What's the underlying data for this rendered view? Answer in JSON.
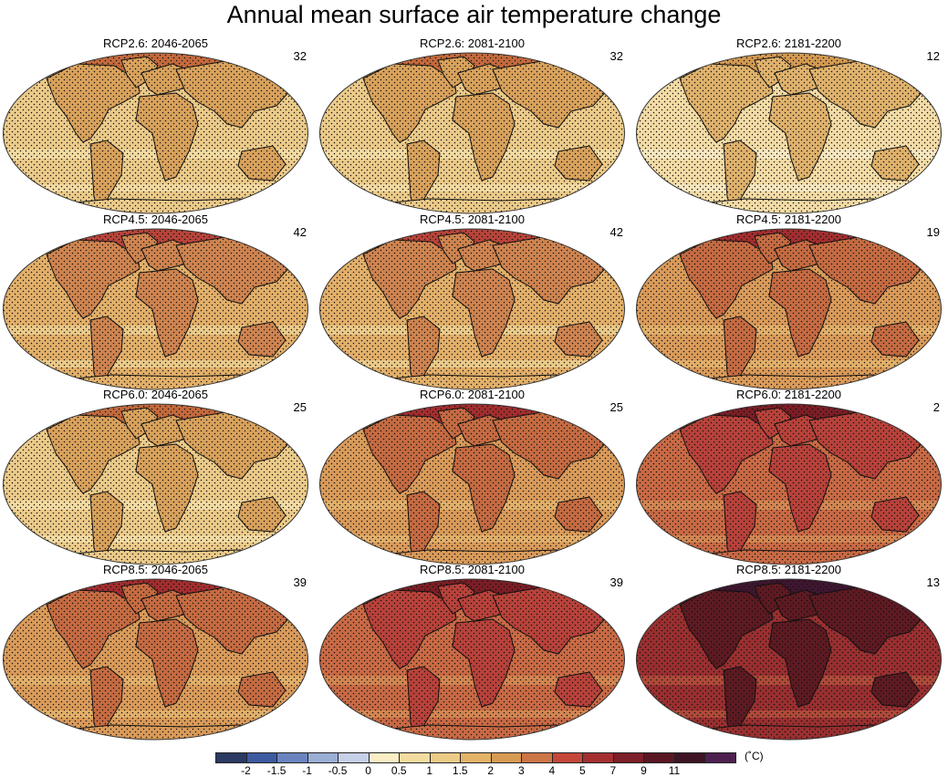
{
  "title": "Annual mean surface air temperature change",
  "unit": "(˚C)",
  "panels": [
    {
      "label": "RCP2.6: 2046-2065",
      "count": "32",
      "level": 1
    },
    {
      "label": "RCP2.6: 2081-2100",
      "count": "32",
      "level": 1
    },
    {
      "label": "RCP2.6: 2181-2200",
      "count": "12",
      "level": 0
    },
    {
      "label": "RCP4.5: 2046-2065",
      "count": "42",
      "level": 2
    },
    {
      "label": "RCP4.5: 2081-2100",
      "count": "42",
      "level": 2
    },
    {
      "label": "RCP4.5: 2181-2200",
      "count": "19",
      "level": 3
    },
    {
      "label": "RCP6.0: 2046-2065",
      "count": "25",
      "level": 1
    },
    {
      "label": "RCP6.0: 2081-2100",
      "count": "25",
      "level": 3
    },
    {
      "label": "RCP6.0: 2181-2200",
      "count": "2",
      "level": 4
    },
    {
      "label": "RCP8.5: 2046-2065",
      "count": "39",
      "level": 3
    },
    {
      "label": "RCP8.5: 2081-2100",
      "count": "39",
      "level": 4
    },
    {
      "label": "RCP8.5: 2181-2200",
      "count": "13",
      "level": 6
    }
  ],
  "palettes": [
    {
      "ocean": "#f3dca6",
      "land": "#e0b26c",
      "arctic": "#d49a52",
      "band": "#f7e7bf"
    },
    {
      "ocean": "#eccb8a",
      "land": "#d9a25c",
      "arctic": "#c46a3d",
      "band": "#f3dba2"
    },
    {
      "ocean": "#e3b06a",
      "land": "#cf8450",
      "arctic": "#b8443a",
      "band": "#eccb8a"
    },
    {
      "ocean": "#da9b5a",
      "land": "#c66b42",
      "arctic": "#a32e2f",
      "band": "#e3b06a"
    },
    {
      "ocean": "#c96a45",
      "land": "#b8423a",
      "arctic": "#7c1e25",
      "band": "#d48652"
    },
    {
      "ocean": "#b64a3b",
      "land": "#8f2a2c",
      "arctic": "#4c1528",
      "band": "#c45a40"
    },
    {
      "ocean": "#9a2f30",
      "land": "#5e1a22",
      "arctic": "#3f1630",
      "band": "#b04a3a"
    }
  ],
  "colorbar": {
    "colors": [
      "#2b3a62",
      "#3d5aa0",
      "#6b84bf",
      "#9aaed6",
      "#c6d0e6",
      "#fbeec4",
      "#f4dba0",
      "#eccb86",
      "#e3b367",
      "#d79a52",
      "#cc7546",
      "#c5473a",
      "#a42f31",
      "#7d1f28",
      "#5a1722",
      "#3e1424",
      "#4d2050"
    ],
    "ticks": [
      "-2",
      "-1.5",
      "-1",
      "-0.5",
      "0",
      "0.5",
      "1",
      "1.5",
      "2",
      "3",
      "4",
      "5",
      "7",
      "9",
      "11"
    ]
  }
}
